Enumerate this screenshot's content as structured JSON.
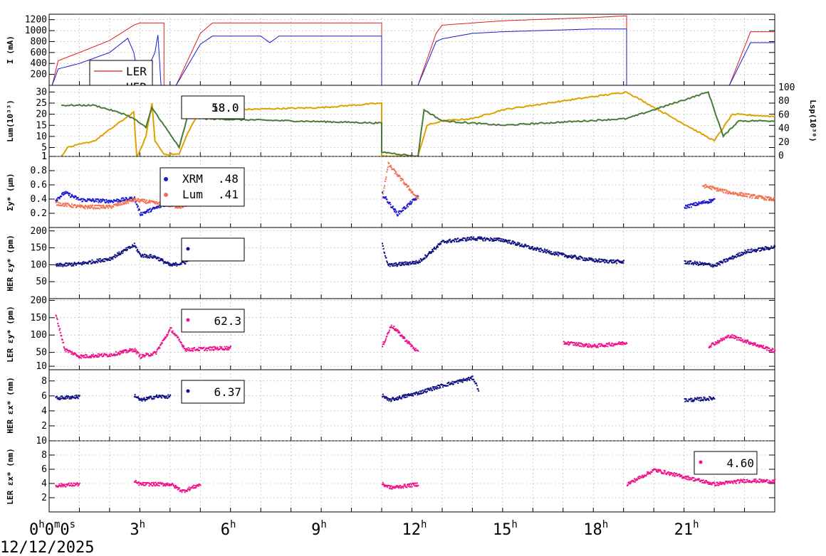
{
  "date": "12/12/2025",
  "chart_data": [
    {
      "type": "line",
      "ylabel": "I (mA)",
      "yticks": [
        "200",
        "400",
        "600",
        "800",
        "1000",
        "1200"
      ],
      "ylim": [
        0,
        1300
      ],
      "legend": {
        "entries": [
          {
            "name": "LER",
            "color": "#e41a1c"
          },
          {
            "name": "HER",
            "color": "#1a1ad0"
          }
        ]
      },
      "series": [
        {
          "name": "LER",
          "color": "#e41a1c",
          "points": [
            [
              0.1,
              0
            ],
            [
              0.3,
              450
            ],
            [
              1.0,
              600
            ],
            [
              2.0,
              820
            ],
            [
              2.8,
              1100
            ],
            [
              3.0,
              1140
            ],
            [
              3.8,
              1140
            ],
            [
              3.8,
              0
            ],
            [
              4.2,
              0
            ],
            [
              5.0,
              950
            ],
            [
              5.4,
              1140
            ],
            [
              11.0,
              1140
            ],
            [
              11.0,
              0
            ],
            [
              12.2,
              0
            ],
            [
              12.8,
              950
            ],
            [
              13.0,
              1100
            ],
            [
              14.0,
              1140
            ],
            [
              15.0,
              1180
            ],
            [
              18.0,
              1240
            ],
            [
              19.1,
              1270
            ],
            [
              19.1,
              0
            ],
            [
              22.5,
              0
            ],
            [
              23.2,
              980
            ],
            [
              24.0,
              980
            ]
          ]
        },
        {
          "name": "HER",
          "color": "#1a1ad0",
          "points": [
            [
              0.1,
              0
            ],
            [
              0.3,
              300
            ],
            [
              1.0,
              400
            ],
            [
              2.0,
              600
            ],
            [
              2.6,
              860
            ],
            [
              2.8,
              600
            ],
            [
              3.0,
              0
            ],
            [
              3.5,
              600
            ],
            [
              3.6,
              920
            ],
            [
              3.7,
              0
            ],
            [
              4.2,
              0
            ],
            [
              5.0,
              750
            ],
            [
              5.4,
              900
            ],
            [
              7.0,
              900
            ],
            [
              7.3,
              780
            ],
            [
              7.6,
              900
            ],
            [
              11.0,
              900
            ],
            [
              11.0,
              0
            ],
            [
              12.2,
              0
            ],
            [
              12.8,
              800
            ],
            [
              13.0,
              850
            ],
            [
              14.0,
              950
            ],
            [
              15.0,
              980
            ],
            [
              18.0,
              1030
            ],
            [
              19.1,
              1030
            ],
            [
              19.1,
              0
            ],
            [
              22.5,
              0
            ],
            [
              23.2,
              780
            ],
            [
              24.0,
              780
            ]
          ]
        }
      ]
    },
    {
      "type": "line",
      "ylabel": "Lum(10³³)",
      "ylabel_right": "Lsp(10³⁰)",
      "yticks": [
        "1",
        "5",
        "10",
        "15",
        "20",
        "25",
        "30"
      ],
      "yticks_right": [
        "0",
        "20",
        "40",
        "60",
        "80",
        "100"
      ],
      "ylim": [
        1,
        33
      ],
      "legend": {
        "entries": [
          {
            "name": "58.0",
            "color": "#5a8a3a"
          },
          {
            "name": "18.0",
            "color": "#e0a000"
          }
        ]
      },
      "series": [
        {
          "name": "Lum",
          "color": "#e0a000",
          "points": [
            [
              0.4,
              1
            ],
            [
              0.6,
              5
            ],
            [
              1.5,
              8
            ],
            [
              2.5,
              18
            ],
            [
              2.8,
              21
            ],
            [
              2.9,
              0
            ],
            [
              3.2,
              10
            ],
            [
              3.4,
              25
            ],
            [
              3.5,
              8
            ],
            [
              3.8,
              2
            ],
            [
              4.3,
              2
            ],
            [
              4.6,
              12
            ],
            [
              5.0,
              22
            ],
            [
              6.0,
              22
            ],
            [
              9.0,
              23
            ],
            [
              11.0,
              25
            ],
            [
              11.0,
              1
            ],
            [
              12.2,
              1
            ],
            [
              12.5,
              15
            ],
            [
              13.0,
              17
            ],
            [
              14.0,
              18
            ],
            [
              15.0,
              22
            ],
            [
              17.0,
              26
            ],
            [
              19.1,
              30
            ],
            [
              22.0,
              8
            ],
            [
              22.6,
              20
            ],
            [
              24.0,
              19
            ]
          ]
        },
        {
          "name": "Lsp",
          "color": "#4a7a3a",
          "points": [
            [
              0.4,
              24
            ],
            [
              1.5,
              24
            ],
            [
              2.5,
              20
            ],
            [
              2.8,
              18
            ],
            [
              3.2,
              14
            ],
            [
              3.4,
              23
            ],
            [
              3.8,
              15
            ],
            [
              4.3,
              5
            ],
            [
              4.6,
              20
            ],
            [
              5.0,
              18
            ],
            [
              8.0,
              17
            ],
            [
              11.0,
              16
            ],
            [
              11.0,
              3
            ],
            [
              12.2,
              1
            ],
            [
              12.4,
              22
            ],
            [
              13.0,
              17
            ],
            [
              15.0,
              15
            ],
            [
              19.1,
              18
            ],
            [
              21.8,
              30
            ],
            [
              22.3,
              10
            ],
            [
              22.8,
              17
            ],
            [
              24.0,
              17
            ]
          ]
        }
      ]
    },
    {
      "type": "scatter",
      "ylabel": "Σy* (μm)",
      "yticks": [
        "0.2",
        "0.4",
        "0.6",
        "0.8",
        "1"
      ],
      "ylim": [
        0,
        1
      ],
      "legend": {
        "entries": [
          {
            "name": "XRM",
            "value": ".48",
            "color": "#1a1ad0"
          },
          {
            "name": "Lum",
            "value": ".41",
            "color": "#f07050"
          }
        ]
      },
      "series": [
        {
          "name": "XRM",
          "color": "#1a1ad0",
          "points": [
            [
              0.2,
              0.4
            ],
            [
              0.5,
              0.5
            ],
            [
              1.0,
              0.4
            ],
            [
              2.0,
              0.38
            ],
            [
              2.8,
              0.42
            ],
            [
              3.0,
              0.2
            ],
            [
              4.5,
              0.45
            ],
            [
              6.0,
              0.47
            ],
            [
              9.0,
              0.47
            ],
            [
              11.0,
              0.48
            ],
            [
              11.5,
              0.2
            ],
            [
              12.2,
              0.45
            ],
            [
              15.0,
              0.46
            ],
            [
              17.0,
              0.43
            ],
            [
              19.1,
              0.42
            ],
            [
              21.0,
              0.3
            ],
            [
              22.0,
              0.4
            ],
            [
              24.0,
              0.45
            ]
          ]
        },
        {
          "name": "Lum",
          "color": "#f07050",
          "points": [
            [
              0.2,
              0.35
            ],
            [
              1.0,
              0.3
            ],
            [
              2.0,
              0.3
            ],
            [
              2.8,
              0.4
            ],
            [
              4.3,
              0.3
            ],
            [
              5.0,
              0.4
            ],
            [
              8.0,
              0.42
            ],
            [
              11.0,
              0.45
            ],
            [
              11.2,
              0.9
            ],
            [
              12.2,
              0.4
            ],
            [
              15.0,
              0.38
            ],
            [
              19.1,
              0.35
            ],
            [
              21.6,
              0.6
            ],
            [
              22.5,
              0.5
            ],
            [
              24.0,
              0.4
            ]
          ]
        }
      ]
    },
    {
      "type": "scatter",
      "ylabel": "HER εy* (pm)",
      "yticks": [
        "50",
        "100",
        "150",
        "200"
      ],
      "ylim": [
        0,
        210
      ],
      "legend": {
        "entries": [
          {
            "name": "HER εy*",
            "value": "",
            "color": "#101080"
          }
        ]
      },
      "series": [
        {
          "name": "HER εy*",
          "color": "#101080",
          "points": [
            [
              0.2,
              100
            ],
            [
              1.0,
              105
            ],
            [
              2.0,
              120
            ],
            [
              2.8,
              160
            ],
            [
              3.0,
              130
            ],
            [
              3.5,
              125
            ],
            [
              4.0,
              100
            ],
            [
              4.5,
              110
            ],
            [
              5.0,
              150
            ],
            [
              6.0,
              160
            ],
            [
              8.0,
              160
            ],
            [
              11.0,
              160
            ],
            [
              11.2,
              100
            ],
            [
              12.2,
              110
            ],
            [
              13.0,
              170
            ],
            [
              14.0,
              180
            ],
            [
              15.0,
              175
            ],
            [
              16.0,
              150
            ],
            [
              17.0,
              130
            ],
            [
              18.0,
              115
            ],
            [
              19.0,
              110
            ],
            [
              21.0,
              110
            ],
            [
              22.0,
              100
            ],
            [
              23.0,
              140
            ],
            [
              24.0,
              155
            ]
          ]
        }
      ]
    },
    {
      "type": "scatter",
      "ylabel": "LER εy* (pm)",
      "yticks": [
        "10",
        "50",
        "100",
        "150",
        "200"
      ],
      "ylim": [
        0,
        205
      ],
      "legend": {
        "entries": [
          {
            "name": "LER εy*",
            "value": "62.3",
            "color": "#f0108a"
          }
        ]
      },
      "series": [
        {
          "name": "LER εy*",
          "color": "#f0108a",
          "points": [
            [
              0.2,
              160
            ],
            [
              0.5,
              60
            ],
            [
              1.0,
              40
            ],
            [
              2.0,
              45
            ],
            [
              2.8,
              60
            ],
            [
              3.0,
              40
            ],
            [
              3.5,
              50
            ],
            [
              4.0,
              120
            ],
            [
              4.5,
              60
            ],
            [
              6.0,
              65
            ],
            [
              8.0,
              60
            ],
            [
              11.0,
              70
            ],
            [
              11.3,
              130
            ],
            [
              12.2,
              50
            ],
            [
              15.0,
              70
            ],
            [
              17.0,
              80
            ],
            [
              18.0,
              70
            ],
            [
              19.1,
              80
            ],
            [
              21.8,
              70
            ],
            [
              22.5,
              100
            ],
            [
              24.0,
              55
            ]
          ]
        }
      ]
    },
    {
      "type": "scatter",
      "ylabel": "HER εx* (nm)",
      "yticks": [
        "2",
        "4",
        "6",
        "8"
      ],
      "ylim": [
        0,
        9.5
      ],
      "legend": {
        "entries": [
          {
            "name": "HER εx*",
            "value": "6.37",
            "color": "#101080"
          }
        ]
      },
      "series": [
        {
          "name": "HER εx*",
          "color": "#101080",
          "points": [
            [
              0.2,
              5.8
            ],
            [
              1.0,
              6.0
            ],
            [
              2.8,
              6.2
            ],
            [
              3.0,
              5.5
            ],
            [
              3.5,
              6.0
            ],
            [
              4.0,
              6.0
            ],
            [
              6.0,
              6.2
            ],
            [
              11.0,
              6.2
            ],
            [
              11.2,
              5.5
            ],
            [
              12.2,
              6.5
            ],
            [
              13.0,
              7.5
            ],
            [
              14.0,
              8.5
            ],
            [
              14.2,
              6.8
            ],
            [
              16.0,
              7.0
            ],
            [
              19.1,
              7.5
            ],
            [
              21.0,
              5.5
            ],
            [
              22.0,
              5.8
            ],
            [
              24.0,
              6.0
            ]
          ]
        }
      ]
    },
    {
      "type": "scatter",
      "ylabel": "LER εx* (nm)",
      "yticks": [
        "2",
        "4",
        "6",
        "8",
        "10"
      ],
      "ylim": [
        0,
        10
      ],
      "legend": {
        "entries": [
          {
            "name": "LER εx*",
            "value": "4.60",
            "color": "#f0108a"
          }
        ]
      },
      "series": [
        {
          "name": "LER εx*",
          "color": "#f0108a",
          "points": [
            [
              0.2,
              3.8
            ],
            [
              1.0,
              4.0
            ],
            [
              2.8,
              4.3
            ],
            [
              3.0,
              4.0
            ],
            [
              4.0,
              4.0
            ],
            [
              4.4,
              3.0
            ],
            [
              5.0,
              4.0
            ],
            [
              11.0,
              4.0
            ],
            [
              11.3,
              3.5
            ],
            [
              12.2,
              4.0
            ],
            [
              15.0,
              4.0
            ],
            [
              19.1,
              4.0
            ],
            [
              20.0,
              6.0
            ],
            [
              21.0,
              5.0
            ],
            [
              22.0,
              4.0
            ],
            [
              23.0,
              4.5
            ],
            [
              24.0,
              4.4
            ]
          ]
        }
      ]
    }
  ],
  "xaxis": {
    "xlim": [
      0,
      24
    ],
    "ticks": [
      {
        "t": 0,
        "label": "0",
        "sup": "h",
        "extra": "0",
        "extra_sup": "m",
        "extra2": "0",
        "extra2_sup": "s"
      },
      {
        "t": 3,
        "label": "3",
        "sup": "h"
      },
      {
        "t": 6,
        "label": "6",
        "sup": "h"
      },
      {
        "t": 9,
        "label": "9",
        "sup": "h"
      },
      {
        "t": 12,
        "label": "12",
        "sup": "h"
      },
      {
        "t": 15,
        "label": "15",
        "sup": "h"
      },
      {
        "t": 18,
        "label": "18",
        "sup": "h"
      },
      {
        "t": 21,
        "label": "21",
        "sup": "h"
      }
    ]
  }
}
